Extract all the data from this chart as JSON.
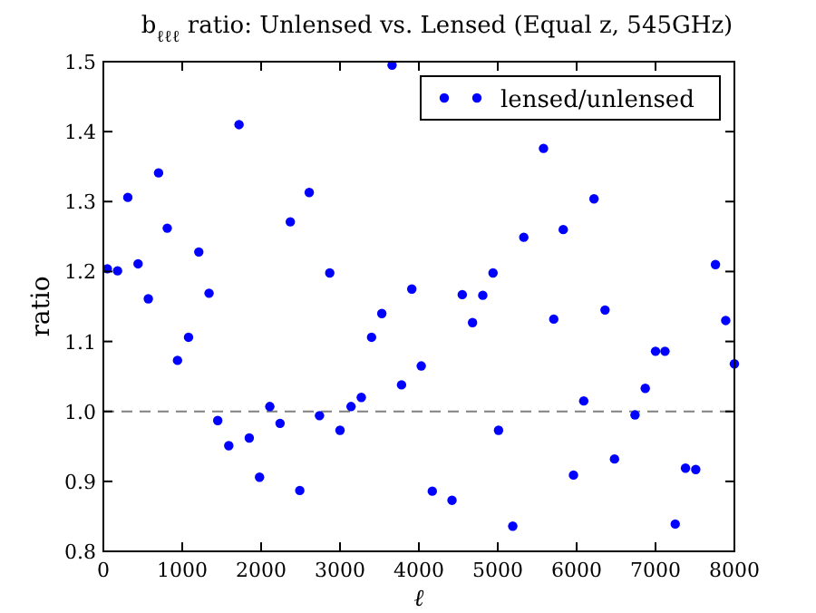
{
  "chart_data": {
    "type": "scatter",
    "title": "b$_{ℓℓℓ}$ ratio: Unlensed vs. Lensed (Equal z, 545GHz)",
    "xlabel": "ℓ",
    "ylabel": "ratio",
    "xlim": [
      0,
      8000
    ],
    "ylim": [
      0.8,
      1.5
    ],
    "xticks": [
      0,
      1000,
      2000,
      3000,
      4000,
      5000,
      6000,
      7000,
      8000
    ],
    "yticks": [
      {
        "value": 0.8,
        "label": "0.8"
      },
      {
        "value": 0.9,
        "label": "0.9"
      },
      {
        "value": 1.0,
        "label": "1.0"
      },
      {
        "value": 1.1,
        "label": "1.1"
      },
      {
        "value": 1.2,
        "label": "1.2"
      },
      {
        "value": 1.3,
        "label": "1.3"
      },
      {
        "value": 1.4,
        "label": "1.4"
      },
      {
        "value": 1.5,
        "label": "1.5"
      }
    ],
    "x": [
      50,
      180,
      310,
      440,
      570,
      700,
      810,
      940,
      1080,
      1210,
      1340,
      1450,
      1590,
      1720,
      1850,
      1980,
      2110,
      2240,
      2370,
      2490,
      2610,
      2740,
      2870,
      3000,
      3140,
      3270,
      3400,
      3530,
      3660,
      3780,
      3910,
      4030,
      4170,
      4420,
      4550,
      4680,
      4810,
      4940,
      5010,
      5190,
      5330,
      5580,
      5710,
      5830,
      5960,
      6090,
      6220,
      6360,
      6480,
      6740,
      6870,
      7000,
      7120,
      7250,
      7380,
      7510,
      7760,
      7890,
      8000
    ],
    "series": [
      {
        "name": "lensed/unlensed",
        "color": "#0000ff",
        "values": [
          1.204,
          1.201,
          1.306,
          1.211,
          1.161,
          1.341,
          1.262,
          1.073,
          1.106,
          1.228,
          1.169,
          0.987,
          0.951,
          1.41,
          0.962,
          0.906,
          1.007,
          0.983,
          1.271,
          0.887,
          1.313,
          0.994,
          1.198,
          0.973,
          1.007,
          1.02,
          1.106,
          1.14,
          1.495,
          1.038,
          1.175,
          1.065,
          0.886,
          0.873,
          1.167,
          1.127,
          1.166,
          1.198,
          0.973,
          0.836,
          1.249,
          1.376,
          1.132,
          1.26,
          0.909,
          1.015,
          1.304,
          1.145,
          0.932,
          0.995,
          1.033,
          1.086,
          1.086,
          0.839,
          0.919,
          0.917,
          1.21,
          1.13,
          1.068
        ]
      }
    ],
    "ref_lines": [
      {
        "axis": "y",
        "value": 1.0,
        "color": "#808080",
        "line_style": "dashed"
      }
    ],
    "legend": "top right",
    "marker": "circle",
    "grid": false
  }
}
